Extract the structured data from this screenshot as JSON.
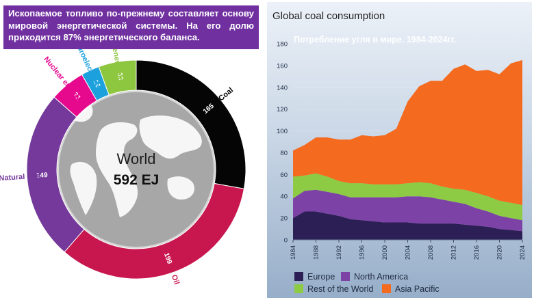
{
  "left_panel": {
    "banner_text": "Ископаемое топливо по-прежнему составляет основу мировой энергетической системы. На его долю приходится 87% энергетического баланса.",
    "center_label": "World",
    "center_total": "592 EJ",
    "colors": {
      "coal": "#050505",
      "oil": "#c8174f",
      "natural_gas": "#74399a",
      "nuclear": "#e6098e",
      "hydro": "#1da1dd",
      "renewables": "#8dc63f"
    }
  },
  "right_panel": {
    "title": "Global coal consumption",
    "subtitle": "Потребление угля в мире. 1984-2024гг.",
    "colors": {
      "europe": "#2b1f55",
      "north_america": "#7d42a6",
      "rest_of_world": "#8ccb43",
      "asia_pacific": "#f46a1e"
    }
  },
  "chart_data": [
    {
      "type": "pie",
      "categories": [
        "Coal",
        "Oil",
        "Natural gas",
        "Nuclear energy",
        "Hydroelectricity",
        "Other renewables"
      ],
      "values": [
        165,
        199,
        149,
        31,
        16,
        33
      ],
      "total_label": "592 EJ"
    },
    {
      "type": "area",
      "title": "Global coal consumption",
      "x": [
        1984,
        1986,
        1988,
        1990,
        1992,
        1994,
        1996,
        1998,
        2000,
        2002,
        2004,
        2006,
        2008,
        2010,
        2012,
        2014,
        2016,
        2018,
        2020,
        2022,
        2024
      ],
      "xticks": [
        1984,
        1988,
        1992,
        1996,
        2000,
        2004,
        2008,
        2012,
        2016,
        2020,
        2024
      ],
      "yticks": [
        0,
        20,
        40,
        60,
        80,
        100,
        120,
        140,
        160,
        180
      ],
      "ylim": [
        0,
        180
      ],
      "series": [
        {
          "name": "Europe",
          "values": [
            20,
            26,
            26,
            24,
            22,
            19,
            18,
            17,
            16,
            16,
            16,
            15,
            15,
            15,
            15,
            14,
            13,
            12,
            10,
            9,
            8
          ]
        },
        {
          "name": "North America",
          "values": [
            18,
            19,
            20,
            20,
            20,
            20,
            21,
            22,
            23,
            23,
            24,
            25,
            24,
            22,
            20,
            19,
            16,
            14,
            12,
            11,
            10
          ]
        },
        {
          "name": "Rest of the World",
          "values": [
            20,
            14,
            15,
            14,
            12,
            13,
            13,
            12,
            12,
            12,
            12,
            13,
            13,
            12,
            12,
            13,
            14,
            14,
            14,
            14,
            14
          ]
        },
        {
          "name": "Asia Pacific",
          "values": [
            24,
            28,
            33,
            36,
            38,
            40,
            44,
            44,
            45,
            51,
            75,
            88,
            94,
            97,
            110,
            115,
            112,
            116,
            116,
            128,
            133
          ]
        }
      ]
    }
  ]
}
